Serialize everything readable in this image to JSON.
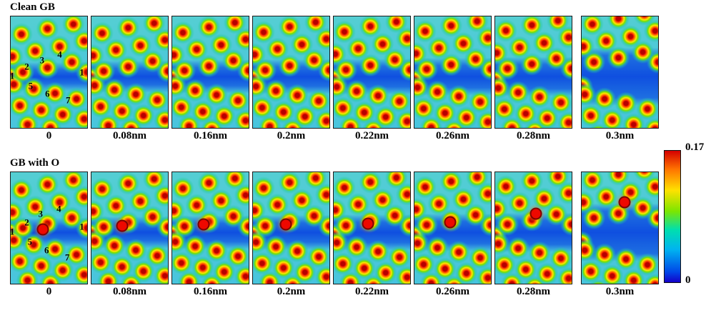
{
  "chart_data": {
    "type": "heatmap",
    "description": "Charge-density maps of a grain boundary under increasing separation, without and with an oxygen atom",
    "colorbar": {
      "min": 0,
      "max": 0.17,
      "min_label": "0",
      "max_label": "0.17",
      "position": "right"
    },
    "rows": [
      {
        "title": "Clean GB",
        "panels": [
          {
            "label": "0",
            "open": 0,
            "numbers": [
              {
                "t": "1",
                "x": 2,
                "y": 53
              },
              {
                "t": "2",
                "x": 21,
                "y": 45
              },
              {
                "t": "3",
                "x": 41,
                "y": 39
              },
              {
                "t": "4",
                "x": 64,
                "y": 34
              },
              {
                "t": "1",
                "x": 93,
                "y": 50
              },
              {
                "t": "5",
                "x": 26,
                "y": 62
              },
              {
                "t": "6",
                "x": 48,
                "y": 69
              },
              {
                "t": "7",
                "x": 75,
                "y": 75
              }
            ]
          },
          {
            "label": "0.08nm",
            "open": 0.05
          },
          {
            "label": "0.16nm",
            "open": 0.08
          },
          {
            "label": "0.2nm",
            "open": 0.1
          },
          {
            "label": "0.22nm",
            "open": 0.12
          },
          {
            "label": "0.26nm",
            "open": 0.15
          },
          {
            "label": "0.28nm",
            "open": 0.18
          },
          {
            "label": "0.3nm",
            "open": 0.5
          }
        ]
      },
      {
        "title": "GB with O",
        "panels": [
          {
            "label": "0",
            "open": 0,
            "o": [
              42,
              51
            ],
            "numbers": [
              {
                "t": "1",
                "x": 2,
                "y": 53
              },
              {
                "t": "2",
                "x": 21,
                "y": 45
              },
              {
                "t": "3",
                "x": 39,
                "y": 37
              },
              {
                "t": "4",
                "x": 63,
                "y": 33
              },
              {
                "t": "1",
                "x": 93,
                "y": 49
              },
              {
                "t": "5",
                "x": 25,
                "y": 62
              },
              {
                "t": "6",
                "x": 47,
                "y": 70
              },
              {
                "t": "7",
                "x": 74,
                "y": 76
              }
            ]
          },
          {
            "label": "0.08nm",
            "open": 0.05,
            "o": [
              40,
              48
            ]
          },
          {
            "label": "0.16nm",
            "open": 0.08,
            "o": [
              41,
              47
            ]
          },
          {
            "label": "0.2nm",
            "open": 0.1,
            "o": [
              43,
              47
            ]
          },
          {
            "label": "0.22nm",
            "open": 0.12,
            "o": [
              45,
              46
            ]
          },
          {
            "label": "0.26nm",
            "open": 0.15,
            "o": [
              47,
              45
            ]
          },
          {
            "label": "0.28nm",
            "open": 0.18,
            "o": [
              53,
              37
            ]
          },
          {
            "label": "0.3nm",
            "open": 0.5,
            "o": [
              56,
              27
            ]
          }
        ]
      }
    ]
  }
}
